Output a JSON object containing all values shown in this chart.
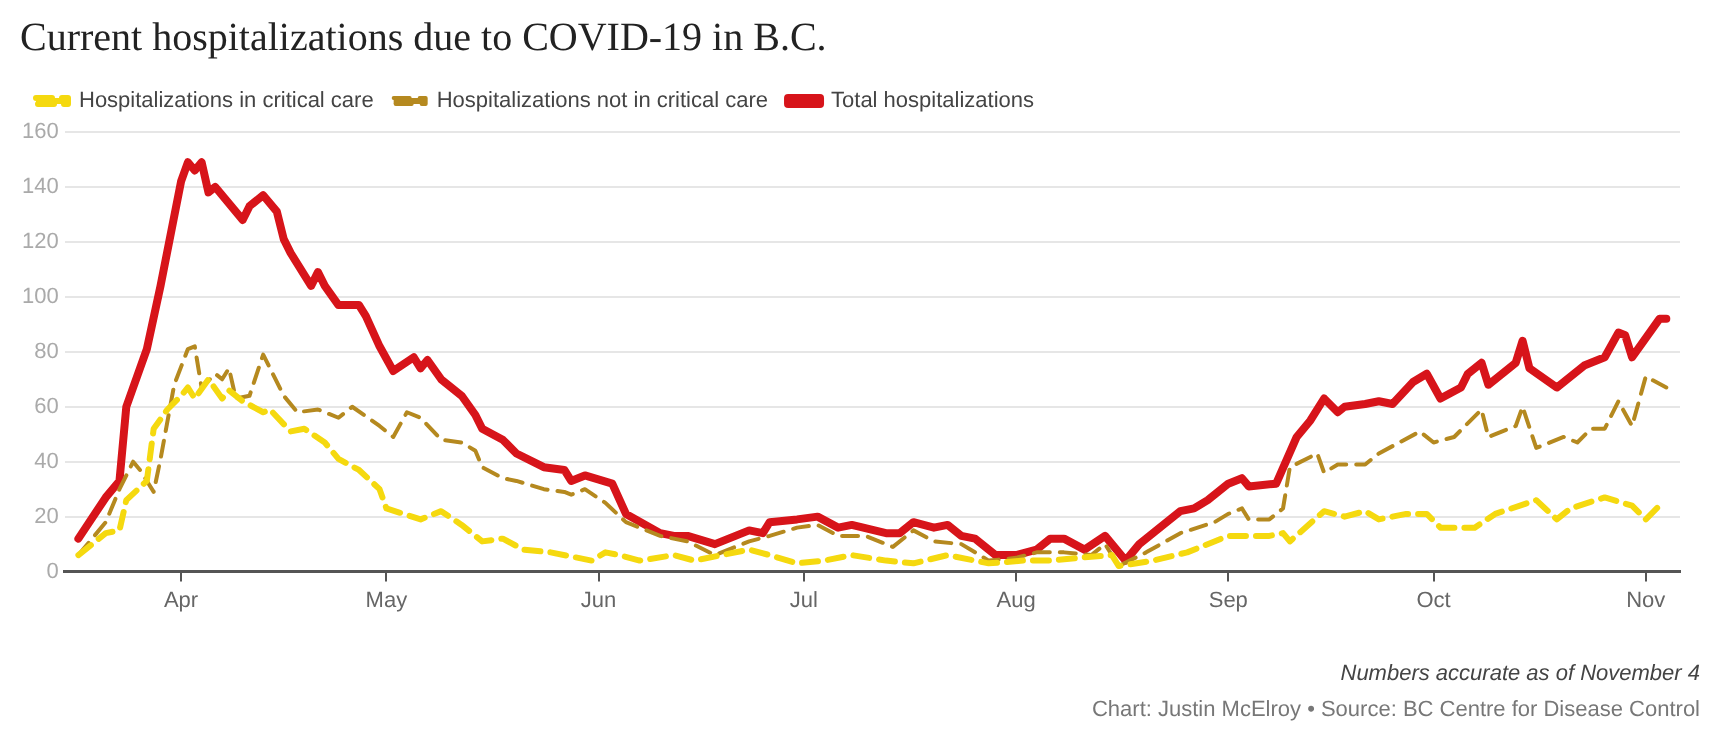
{
  "chart_data": {
    "type": "line",
    "title": "Current hospitalizations due to COVID-19 in B.C.",
    "annotations": [
      "Numbers accurate as of November 4",
      "Chart: Justin McElroy • Source: BC Centre for Disease Control"
    ],
    "xlim": [
      "--03-15",
      "--11-06"
    ],
    "xticks": [
      {
        "value": "--04-01",
        "label": "Apr"
      },
      {
        "value": "--05-01",
        "label": "May"
      },
      {
        "value": "--06-01",
        "label": "Jun"
      },
      {
        "value": "--07-01",
        "label": "Jul"
      },
      {
        "value": "--08-01",
        "label": "Aug"
      },
      {
        "value": "--09-01",
        "label": "Sep"
      },
      {
        "value": "--10-01",
        "label": "Oct"
      },
      {
        "value": "--11-01",
        "label": "Nov"
      }
    ],
    "ylim": [
      0,
      160
    ],
    "yticks": [
      0,
      20,
      40,
      60,
      80,
      100,
      120,
      140,
      160
    ],
    "grid": "y",
    "legend": "top left",
    "marker": "none",
    "series": [
      {
        "name": "Hospitalizations in critical care",
        "color": "#f5d90f",
        "line_style": "dashed",
        "x": [
          "--03-17",
          "--03-21",
          "--03-23",
          "--03-24",
          "--03-27",
          "--03-28",
          "--03-30",
          "--04-01",
          "--04-02",
          "--04-03",
          "--04-05",
          "--04-07",
          "--04-08",
          "--04-10",
          "--04-13",
          "--04-14",
          "--04-17",
          "--04-19",
          "--04-22",
          "--04-24",
          "--04-27",
          "--04-30",
          "--05-01",
          "--05-06",
          "--05-09",
          "--05-12",
          "--05-15",
          "--05-18",
          "--05-21",
          "--05-25",
          "--05-31",
          "--06-02",
          "--06-04",
          "--06-07",
          "--06-12",
          "--06-15",
          "--06-19",
          "--06-23",
          "--06-26",
          "--06-30",
          "--07-04",
          "--07-08",
          "--07-13",
          "--07-17",
          "--07-22",
          "--07-28",
          "--08-02",
          "--08-06",
          "--08-10",
          "--08-15",
          "--08-16",
          "--08-21",
          "--08-26",
          "--09-01",
          "--09-07",
          "--09-09",
          "--09-10",
          "--09-15",
          "--09-18",
          "--09-21",
          "--09-23",
          "--09-27",
          "--09-30",
          "--10-02",
          "--10-07",
          "--10-10",
          "--10-16",
          "--10-19",
          "--10-21",
          "--10-26",
          "--10-30",
          "--11-01",
          "--11-03"
        ],
        "values": [
          6,
          14,
          15,
          26,
          33,
          52,
          59,
          64,
          67,
          63,
          70,
          63,
          66,
          62,
          58,
          59,
          51,
          52,
          47,
          41,
          37,
          30,
          23,
          19,
          22,
          17,
          11,
          12,
          8,
          7,
          4,
          7,
          6,
          4,
          6,
          4,
          6,
          8,
          6,
          3,
          4,
          6,
          4,
          3,
          6,
          3,
          4,
          4,
          5,
          6,
          2,
          4,
          7,
          13,
          13,
          14,
          11,
          22,
          20,
          22,
          19,
          21,
          21,
          16,
          16,
          21,
          26,
          19,
          23,
          27,
          24,
          19,
          24
        ]
      },
      {
        "name": "Hospitalizations not in critical care",
        "color": "#b5891f",
        "line_style": "dashed",
        "x": [
          "--03-17",
          "--03-21",
          "--03-23",
          "--03-25",
          "--03-26",
          "--03-28",
          "--03-29",
          "--03-31",
          "--04-02",
          "--04-03",
          "--04-04",
          "--04-06",
          "--04-07",
          "--04-08",
          "--04-09",
          "--04-11",
          "--04-13",
          "--04-14",
          "--04-16",
          "--04-18",
          "--04-21",
          "--04-24",
          "--04-26",
          "--04-30",
          "--05-02",
          "--05-04",
          "--05-06",
          "--05-09",
          "--05-12",
          "--05-14",
          "--05-15",
          "--05-18",
          "--05-20",
          "--05-24",
          "--05-27",
          "--05-28",
          "--05-30",
          "--06-02",
          "--06-05",
          "--06-10",
          "--06-14",
          "--06-18",
          "--06-23",
          "--06-26",
          "--06-30",
          "--07-03",
          "--07-06",
          "--07-10",
          "--07-14",
          "--07-17",
          "--07-20",
          "--07-24",
          "--07-28",
          "--08-01",
          "--08-04",
          "--08-08",
          "--08-12",
          "--08-14",
          "--08-16",
          "--08-20",
          "--08-25",
          "--08-30",
          "--09-01",
          "--09-03",
          "--09-04",
          "--09-07",
          "--09-09",
          "--09-10",
          "--09-14",
          "--09-15",
          "--09-17",
          "--09-21",
          "--09-23",
          "--09-26",
          "--09-29",
          "--10-01",
          "--10-04",
          "--10-08",
          "--10-09",
          "--10-13",
          "--10-14",
          "--10-16",
          "--10-20",
          "--10-22",
          "--10-24",
          "--10-26",
          "--10-28",
          "--10-30",
          "--11-01",
          "--11-04"
        ],
        "values": [
          6,
          18,
          30,
          40,
          37,
          29,
          41,
          68,
          81,
          82,
          67,
          72,
          70,
          74,
          63,
          64,
          79,
          74,
          64,
          58,
          59,
          56,
          60,
          53,
          49,
          58,
          56,
          48,
          47,
          44,
          38,
          34,
          33,
          30,
          29,
          28,
          30,
          25,
          18,
          13,
          11,
          6,
          11,
          13,
          16,
          17,
          13,
          13,
          9,
          15,
          11,
          10,
          4,
          5,
          7,
          7,
          6,
          10,
          2,
          7,
          14,
          18,
          21,
          23,
          19,
          19,
          23,
          38,
          43,
          36,
          39,
          39,
          43,
          47,
          51,
          47,
          49,
          59,
          49,
          53,
          60,
          45,
          49,
          47,
          52,
          52,
          62,
          53,
          71,
          67
        ]
      },
      {
        "name": "Total hospitalizations",
        "color": "#d7141a",
        "line_style": "solid",
        "x": [
          "--03-17",
          "--03-21",
          "--03-23",
          "--03-24",
          "--03-25",
          "--03-27",
          "--03-29",
          "--04-01",
          "--04-02",
          "--04-03",
          "--04-04",
          "--04-05",
          "--04-06",
          "--04-10",
          "--04-11",
          "--04-13",
          "--04-15",
          "--04-16",
          "--04-17",
          "--04-20",
          "--04-21",
          "--04-22",
          "--04-24",
          "--04-27",
          "--04-28",
          "--04-30",
          "--05-02",
          "--05-05",
          "--05-06",
          "--05-07",
          "--05-09",
          "--05-12",
          "--05-14",
          "--05-15",
          "--05-18",
          "--05-20",
          "--05-24",
          "--05-27",
          "--05-28",
          "--05-30",
          "--06-03",
          "--06-05",
          "--06-10",
          "--06-12",
          "--06-14",
          "--06-18",
          "--06-23",
          "--06-25",
          "--06-26",
          "--06-30",
          "--07-03",
          "--07-06",
          "--07-08",
          "--07-13",
          "--07-15",
          "--07-17",
          "--07-20",
          "--07-22",
          "--07-24",
          "--07-26",
          "--07-29",
          "--08-01",
          "--08-04",
          "--08-06",
          "--08-08",
          "--08-11",
          "--08-14",
          "--08-17",
          "--08-19",
          "--08-21",
          "--08-25",
          "--08-27",
          "--08-29",
          "--09-01",
          "--09-03",
          "--09-04",
          "--09-08",
          "--09-11",
          "--09-13",
          "--09-15",
          "--09-17",
          "--09-18",
          "--09-21",
          "--09-23",
          "--09-25",
          "--09-28",
          "--09-30",
          "--10-02",
          "--10-05",
          "--10-06",
          "--10-08",
          "--10-09",
          "--10-13",
          "--10-14",
          "--10-15",
          "--10-19",
          "--10-23",
          "--10-26",
          "--10-28",
          "--10-29",
          "--10-30",
          "--11-03",
          "--11-04"
        ],
        "values": [
          12,
          27,
          33,
          60,
          67,
          81,
          104,
          142,
          149,
          146,
          149,
          138,
          140,
          128,
          133,
          137,
          131,
          121,
          116,
          104,
          109,
          104,
          97,
          97,
          93,
          82,
          73,
          78,
          74,
          77,
          70,
          64,
          57,
          52,
          48,
          43,
          38,
          37,
          33,
          35,
          32,
          21,
          14,
          13,
          13,
          10,
          15,
          14,
          18,
          19,
          20,
          16,
          17,
          14,
          14,
          18,
          16,
          17,
          13,
          12,
          6,
          6,
          8,
          12,
          12,
          8,
          13,
          4,
          10,
          14,
          22,
          23,
          26,
          32,
          34,
          31,
          32,
          49,
          55,
          63,
          58,
          60,
          61,
          62,
          61,
          69,
          72,
          63,
          67,
          72,
          76,
          68,
          76,
          84,
          74,
          67,
          75,
          78,
          87,
          86,
          78,
          92,
          92
        ]
      }
    ]
  }
}
